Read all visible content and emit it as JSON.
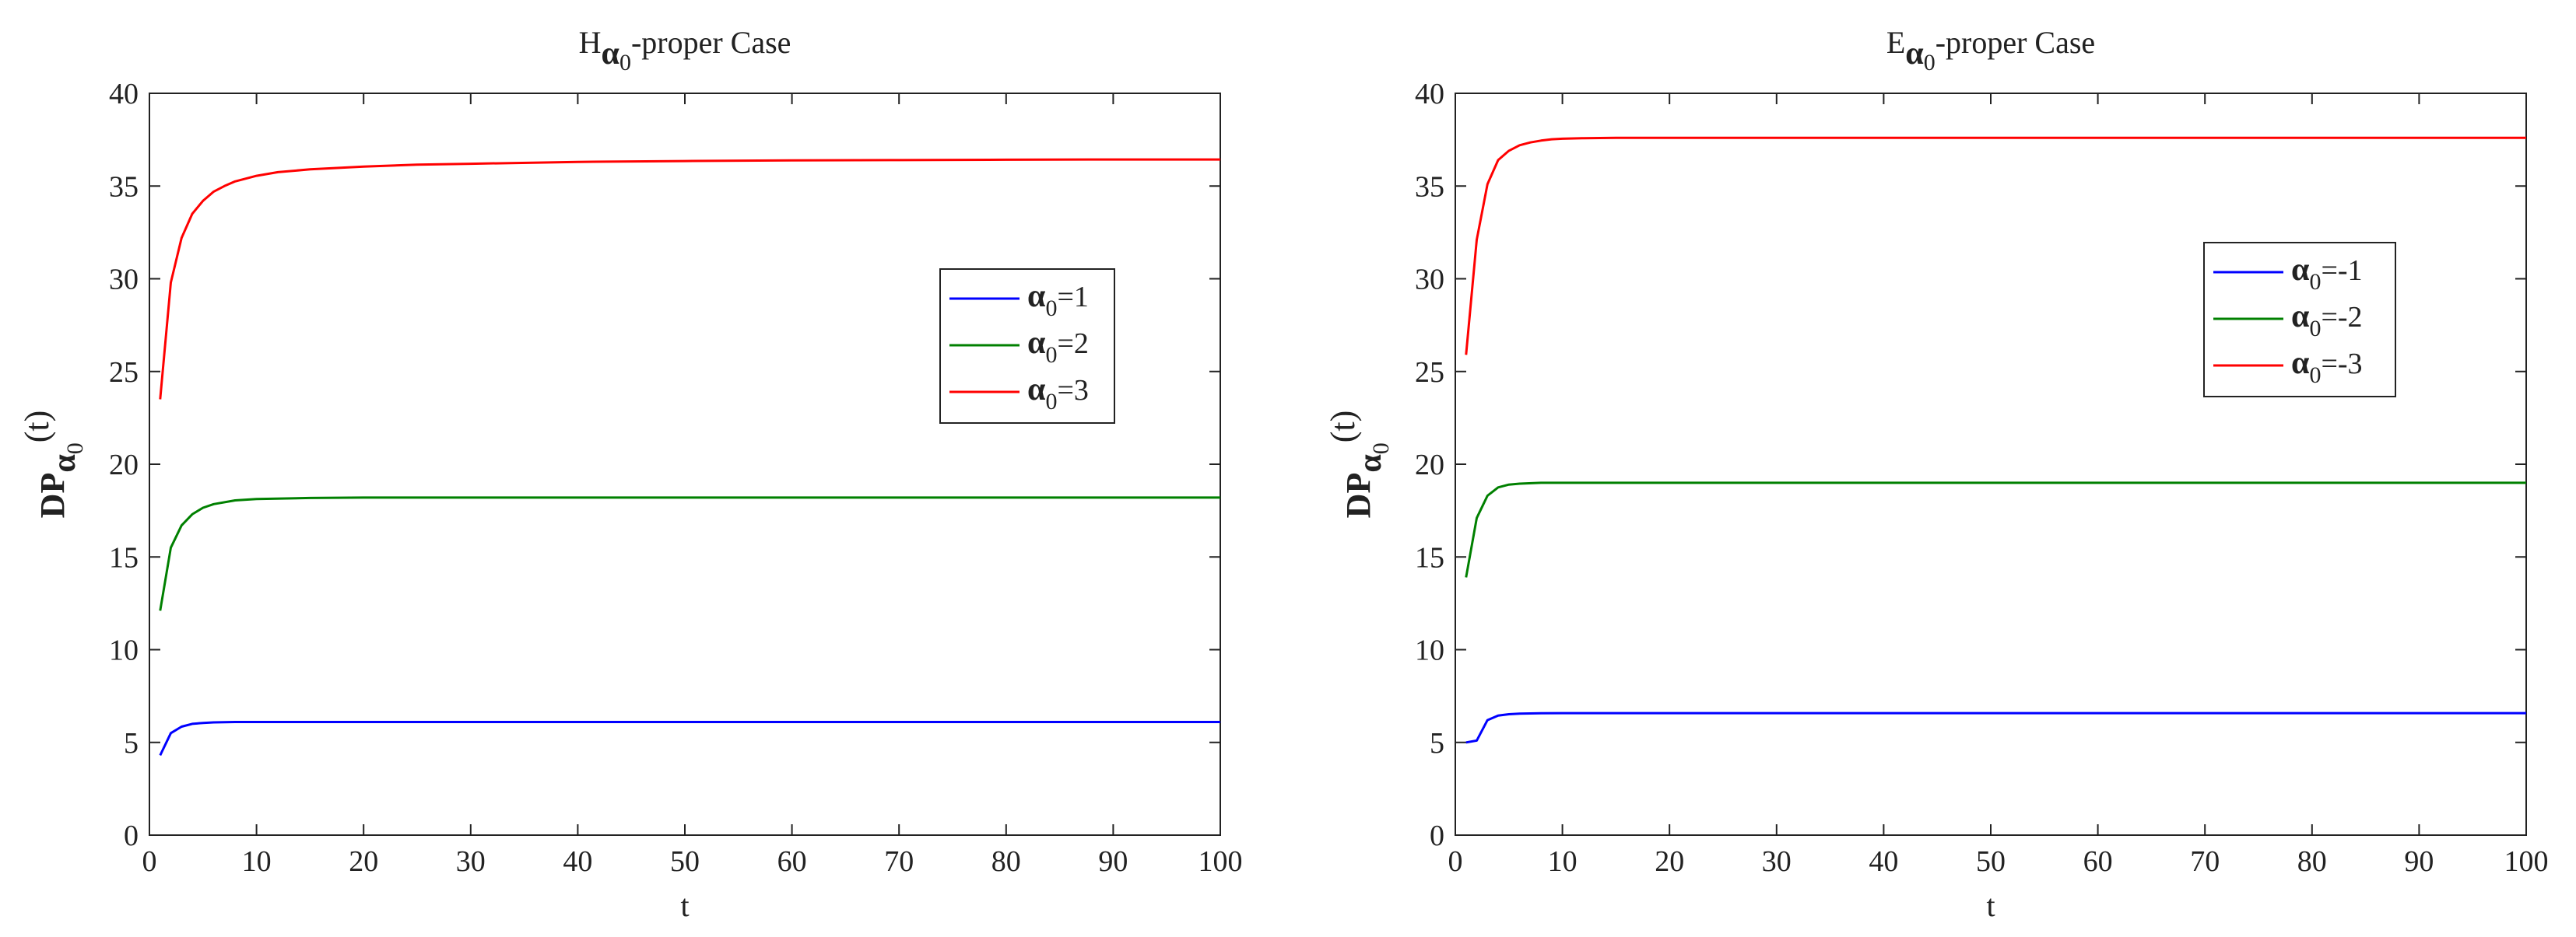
{
  "chart_data": [
    {
      "type": "line",
      "title": {
        "main": "H",
        "sub_symbol": "α",
        "sub_index": "0",
        "rest": "-proper Case"
      },
      "xlabel": "t",
      "ylabel": {
        "main": "DP",
        "sub_symbol": "α",
        "sub_index": "0",
        "rest": "(t)"
      },
      "xlim": [
        0,
        100
      ],
      "ylim": [
        0,
        40
      ],
      "xticks": [
        0,
        10,
        20,
        30,
        40,
        50,
        60,
        70,
        80,
        90,
        100
      ],
      "yticks": [
        0,
        5,
        10,
        15,
        20,
        25,
        30,
        35,
        40
      ],
      "grid": false,
      "legend_position": "right",
      "series": [
        {
          "name": "α0=1",
          "legend": {
            "sym": "α",
            "idx": "0",
            "rest": "=1"
          },
          "color": "#0000ff",
          "x": [
            1,
            2,
            3,
            4,
            5,
            6,
            8,
            10,
            15,
            20,
            30,
            40,
            50,
            60,
            70,
            80,
            90,
            100
          ],
          "y": [
            4.3,
            5.5,
            5.85,
            6.0,
            6.05,
            6.08,
            6.1,
            6.1,
            6.1,
            6.1,
            6.1,
            6.1,
            6.1,
            6.1,
            6.1,
            6.1,
            6.1,
            6.1
          ]
        },
        {
          "name": "α0=2",
          "legend": {
            "sym": "α",
            "idx": "0",
            "rest": "=2"
          },
          "color": "#008000",
          "x": [
            1,
            2,
            3,
            4,
            5,
            6,
            8,
            10,
            15,
            20,
            30,
            40,
            50,
            60,
            70,
            80,
            90,
            100
          ],
          "y": [
            12.1,
            15.5,
            16.7,
            17.3,
            17.65,
            17.85,
            18.05,
            18.12,
            18.18,
            18.2,
            18.2,
            18.2,
            18.2,
            18.2,
            18.2,
            18.2,
            18.2,
            18.2
          ]
        },
        {
          "name": "α0=3",
          "legend": {
            "sym": "α",
            "idx": "0",
            "rest": "=3"
          },
          "color": "#ff0000",
          "x": [
            1,
            2,
            3,
            4,
            5,
            6,
            7,
            8,
            10,
            12,
            15,
            20,
            25,
            30,
            40,
            50,
            60,
            70,
            80,
            90,
            100
          ],
          "y": [
            23.5,
            29.8,
            32.2,
            33.5,
            34.2,
            34.7,
            35.0,
            35.25,
            35.55,
            35.75,
            35.9,
            36.05,
            36.15,
            36.2,
            36.3,
            36.35,
            36.38,
            36.4,
            36.42,
            36.43,
            36.43
          ]
        }
      ]
    },
    {
      "type": "line",
      "title": {
        "main": "E",
        "sub_symbol": "α",
        "sub_index": "0",
        "rest": "-proper Case"
      },
      "xlabel": "t",
      "ylabel": {
        "main": "DP",
        "sub_symbol": "α",
        "sub_index": "0",
        "rest": "(t)"
      },
      "xlim": [
        0,
        100
      ],
      "ylim": [
        0,
        40
      ],
      "xticks": [
        0,
        10,
        20,
        30,
        40,
        50,
        60,
        70,
        80,
        90,
        100
      ],
      "yticks": [
        0,
        5,
        10,
        15,
        20,
        25,
        30,
        35,
        40
      ],
      "grid": false,
      "legend_position": "upper right",
      "series": [
        {
          "name": "α0=-1",
          "legend": {
            "sym": "α",
            "idx": "0",
            "rest": "=-1"
          },
          "color": "#0000ff",
          "x": [
            1,
            2,
            3,
            4,
            5,
            6,
            8,
            10,
            20,
            30,
            40,
            50,
            60,
            70,
            80,
            90,
            100
          ],
          "y": [
            5.0,
            5.1,
            6.2,
            6.45,
            6.52,
            6.55,
            6.57,
            6.58,
            6.58,
            6.58,
            6.58,
            6.58,
            6.58,
            6.58,
            6.58,
            6.58,
            6.58
          ]
        },
        {
          "name": "α0=-2",
          "legend": {
            "sym": "α",
            "idx": "0",
            "rest": "=-2"
          },
          "color": "#008000",
          "x": [
            1,
            2,
            3,
            4,
            5,
            6,
            8,
            10,
            20,
            30,
            40,
            50,
            60,
            70,
            80,
            90,
            100
          ],
          "y": [
            13.9,
            17.1,
            18.3,
            18.75,
            18.9,
            18.95,
            19.0,
            19.0,
            19.0,
            19.0,
            19.0,
            19.0,
            19.0,
            19.0,
            19.0,
            19.0,
            19.0
          ]
        },
        {
          "name": "α0=-3",
          "legend": {
            "sym": "α",
            "idx": "0",
            "rest": "=-3"
          },
          "color": "#ff0000",
          "x": [
            1,
            2,
            3,
            4,
            5,
            6,
            7,
            8,
            9,
            10,
            12,
            15,
            20,
            30,
            40,
            50,
            60,
            70,
            80,
            90,
            100
          ],
          "y": [
            25.9,
            32.1,
            35.1,
            36.4,
            36.9,
            37.2,
            37.35,
            37.45,
            37.52,
            37.55,
            37.58,
            37.6,
            37.6,
            37.6,
            37.6,
            37.6,
            37.6,
            37.6,
            37.6,
            37.6,
            37.6
          ]
        }
      ]
    }
  ]
}
